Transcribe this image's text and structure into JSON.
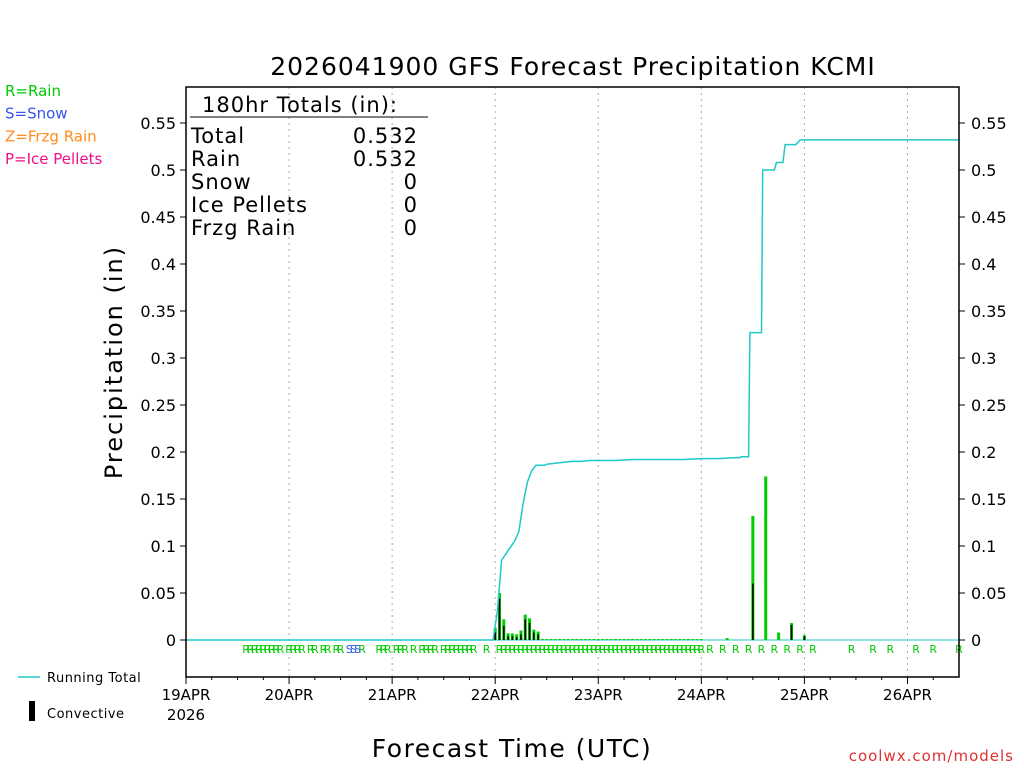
{
  "chart_data": {
    "type": "bar",
    "title": "2026041900 GFS Forecast Precipitation KCMI",
    "xlabel": "Forecast Time (UTC)",
    "ylabel": "Precipitation (in)",
    "ylim": [
      -0.04,
      0.585
    ],
    "yticks": [
      0,
      0.05,
      0.1,
      0.15,
      0.2,
      0.25,
      0.3,
      0.35,
      0.4,
      0.45,
      0.5,
      0.55
    ],
    "ytick_labels": [
      "0",
      "0.05",
      "0.1",
      "0.15",
      "0.2",
      "0.25",
      "0.3",
      "0.35",
      "0.4",
      "0.45",
      "0.5",
      "0.55"
    ],
    "xlim_hours": [
      0,
      180
    ],
    "x_dates": [
      "19APR",
      "20APR",
      "21APR",
      "22APR",
      "23APR",
      "24APR",
      "25APR",
      "26APR"
    ],
    "x_date_hours": [
      0,
      24,
      48,
      72,
      96,
      120,
      144,
      168
    ],
    "year_label": "2026",
    "grid": "vertical dotted at day boundaries",
    "totals_box": {
      "header": "180hr Totals (in):",
      "rows": [
        {
          "label": "Total",
          "value": "0.532"
        },
        {
          "label": "Rain",
          "value": "0.532"
        },
        {
          "label": "Snow",
          "value": "0"
        },
        {
          "label": "Ice Pellets",
          "value": "0"
        },
        {
          "label": "Frzg Rain",
          "value": "0"
        }
      ]
    },
    "ptype_legend": [
      {
        "text": "R=Rain",
        "color": "#00cc00"
      },
      {
        "text": "S=Snow",
        "color": "#3355ee"
      },
      {
        "text": "Z=Frzg Rain",
        "color": "#ff8c1a"
      },
      {
        "text": "P=Ice Pellets",
        "color": "#ee1188"
      }
    ],
    "series_legend": [
      {
        "name": "Running Total",
        "color": "#1fc8c8"
      },
      {
        "name": "Convective",
        "color": "#000000"
      }
    ],
    "series": [
      {
        "name": "Total",
        "color": "#00cc00",
        "x_hours": [
          72,
          73,
          74,
          75,
          76,
          77,
          78,
          79,
          80,
          81,
          82,
          83,
          84,
          85,
          86,
          87,
          88,
          89,
          90,
          91,
          92,
          93,
          94,
          95,
          96,
          97,
          98,
          99,
          100,
          101,
          102,
          103,
          104,
          105,
          106,
          107,
          108,
          109,
          110,
          111,
          112,
          113,
          114,
          115,
          116,
          117,
          118,
          119,
          120,
          126,
          132,
          135,
          138,
          141,
          144
        ],
        "values": [
          0.013,
          0.05,
          0.022,
          0.007,
          0.007,
          0.006,
          0.01,
          0.027,
          0.023,
          0.011,
          0.009,
          0.001,
          0.001,
          0.001,
          0.001,
          0.001,
          0.001,
          0.001,
          0.001,
          0.001,
          0.001,
          0.001,
          0.001,
          0.001,
          0.001,
          0.001,
          0.001,
          0.001,
          0.001,
          0.001,
          0.001,
          0.001,
          0.001,
          0.001,
          0.001,
          0.001,
          0.001,
          0.001,
          0.001,
          0.001,
          0.001,
          0.001,
          0.001,
          0.001,
          0.001,
          0.001,
          0.001,
          0.001,
          0.001,
          0.002,
          0.132,
          0.174,
          0.008,
          0.018,
          0.005
        ]
      },
      {
        "name": "Convective",
        "color": "#000000",
        "x_hours": [
          72,
          73,
          74,
          75,
          76,
          77,
          78,
          79,
          80,
          81,
          82,
          132,
          141,
          144
        ],
        "values": [
          0.008,
          0.044,
          0.015,
          0.004,
          0.004,
          0.003,
          0.006,
          0.022,
          0.018,
          0.008,
          0.006,
          0.06,
          0.016,
          0.004
        ]
      },
      {
        "name": "Running Total",
        "color": "#1fc8c8",
        "x_hours": [
          0,
          71.5,
          72.5,
          73.5,
          75,
          76.5,
          77.5,
          78.5,
          79.5,
          80.5,
          81.5,
          82.5,
          83.5,
          84,
          86,
          88,
          90,
          92,
          94,
          96,
          100,
          104,
          108,
          112,
          116,
          120,
          124,
          128,
          129,
          129.3,
          131,
          131.3,
          132,
          134,
          134.3,
          135.5,
          137,
          137.5,
          139,
          139.5,
          142,
          143,
          144,
          150,
          160,
          170,
          180
        ],
        "values": [
          0,
          0,
          0.03,
          0.085,
          0.095,
          0.105,
          0.115,
          0.145,
          0.168,
          0.18,
          0.186,
          0.186,
          0.186,
          0.187,
          0.188,
          0.189,
          0.19,
          0.19,
          0.191,
          0.191,
          0.191,
          0.192,
          0.192,
          0.192,
          0.192,
          0.193,
          0.193,
          0.194,
          0.194,
          0.195,
          0.195,
          0.327,
          0.327,
          0.327,
          0.5,
          0.5,
          0.5,
          0.508,
          0.508,
          0.527,
          0.527,
          0.532,
          0.532,
          0.532,
          0.532,
          0.532,
          0.532
        ]
      }
    ],
    "ptype_markers": {
      "rain_x_hours": [
        14,
        15,
        16,
        17,
        18,
        19,
        20,
        21,
        22,
        24,
        25,
        26,
        27,
        29,
        30,
        32,
        33,
        35,
        36,
        41,
        45,
        46,
        47,
        49,
        50,
        51,
        53,
        55,
        56,
        57,
        58,
        60,
        61,
        62,
        63,
        64,
        65,
        66,
        67,
        70,
        73,
        74,
        75,
        76,
        77,
        78,
        79,
        80,
        81,
        82,
        83,
        84,
        85,
        86,
        87,
        88,
        89,
        90,
        91,
        92,
        93,
        94,
        95,
        96,
        97,
        98,
        99,
        100,
        101,
        102,
        103,
        104,
        105,
        106,
        107,
        108,
        109,
        110,
        111,
        112,
        113,
        114,
        115,
        116,
        117,
        118,
        119,
        120,
        122,
        125,
        128,
        131,
        134,
        137,
        140,
        143,
        146,
        155,
        160,
        164,
        170,
        174,
        180
      ],
      "snow_x_hours": [
        38,
        39,
        40
      ],
      "rain_letter": "R",
      "snow_letter": "S"
    },
    "credit": "coolwx.com/models"
  }
}
